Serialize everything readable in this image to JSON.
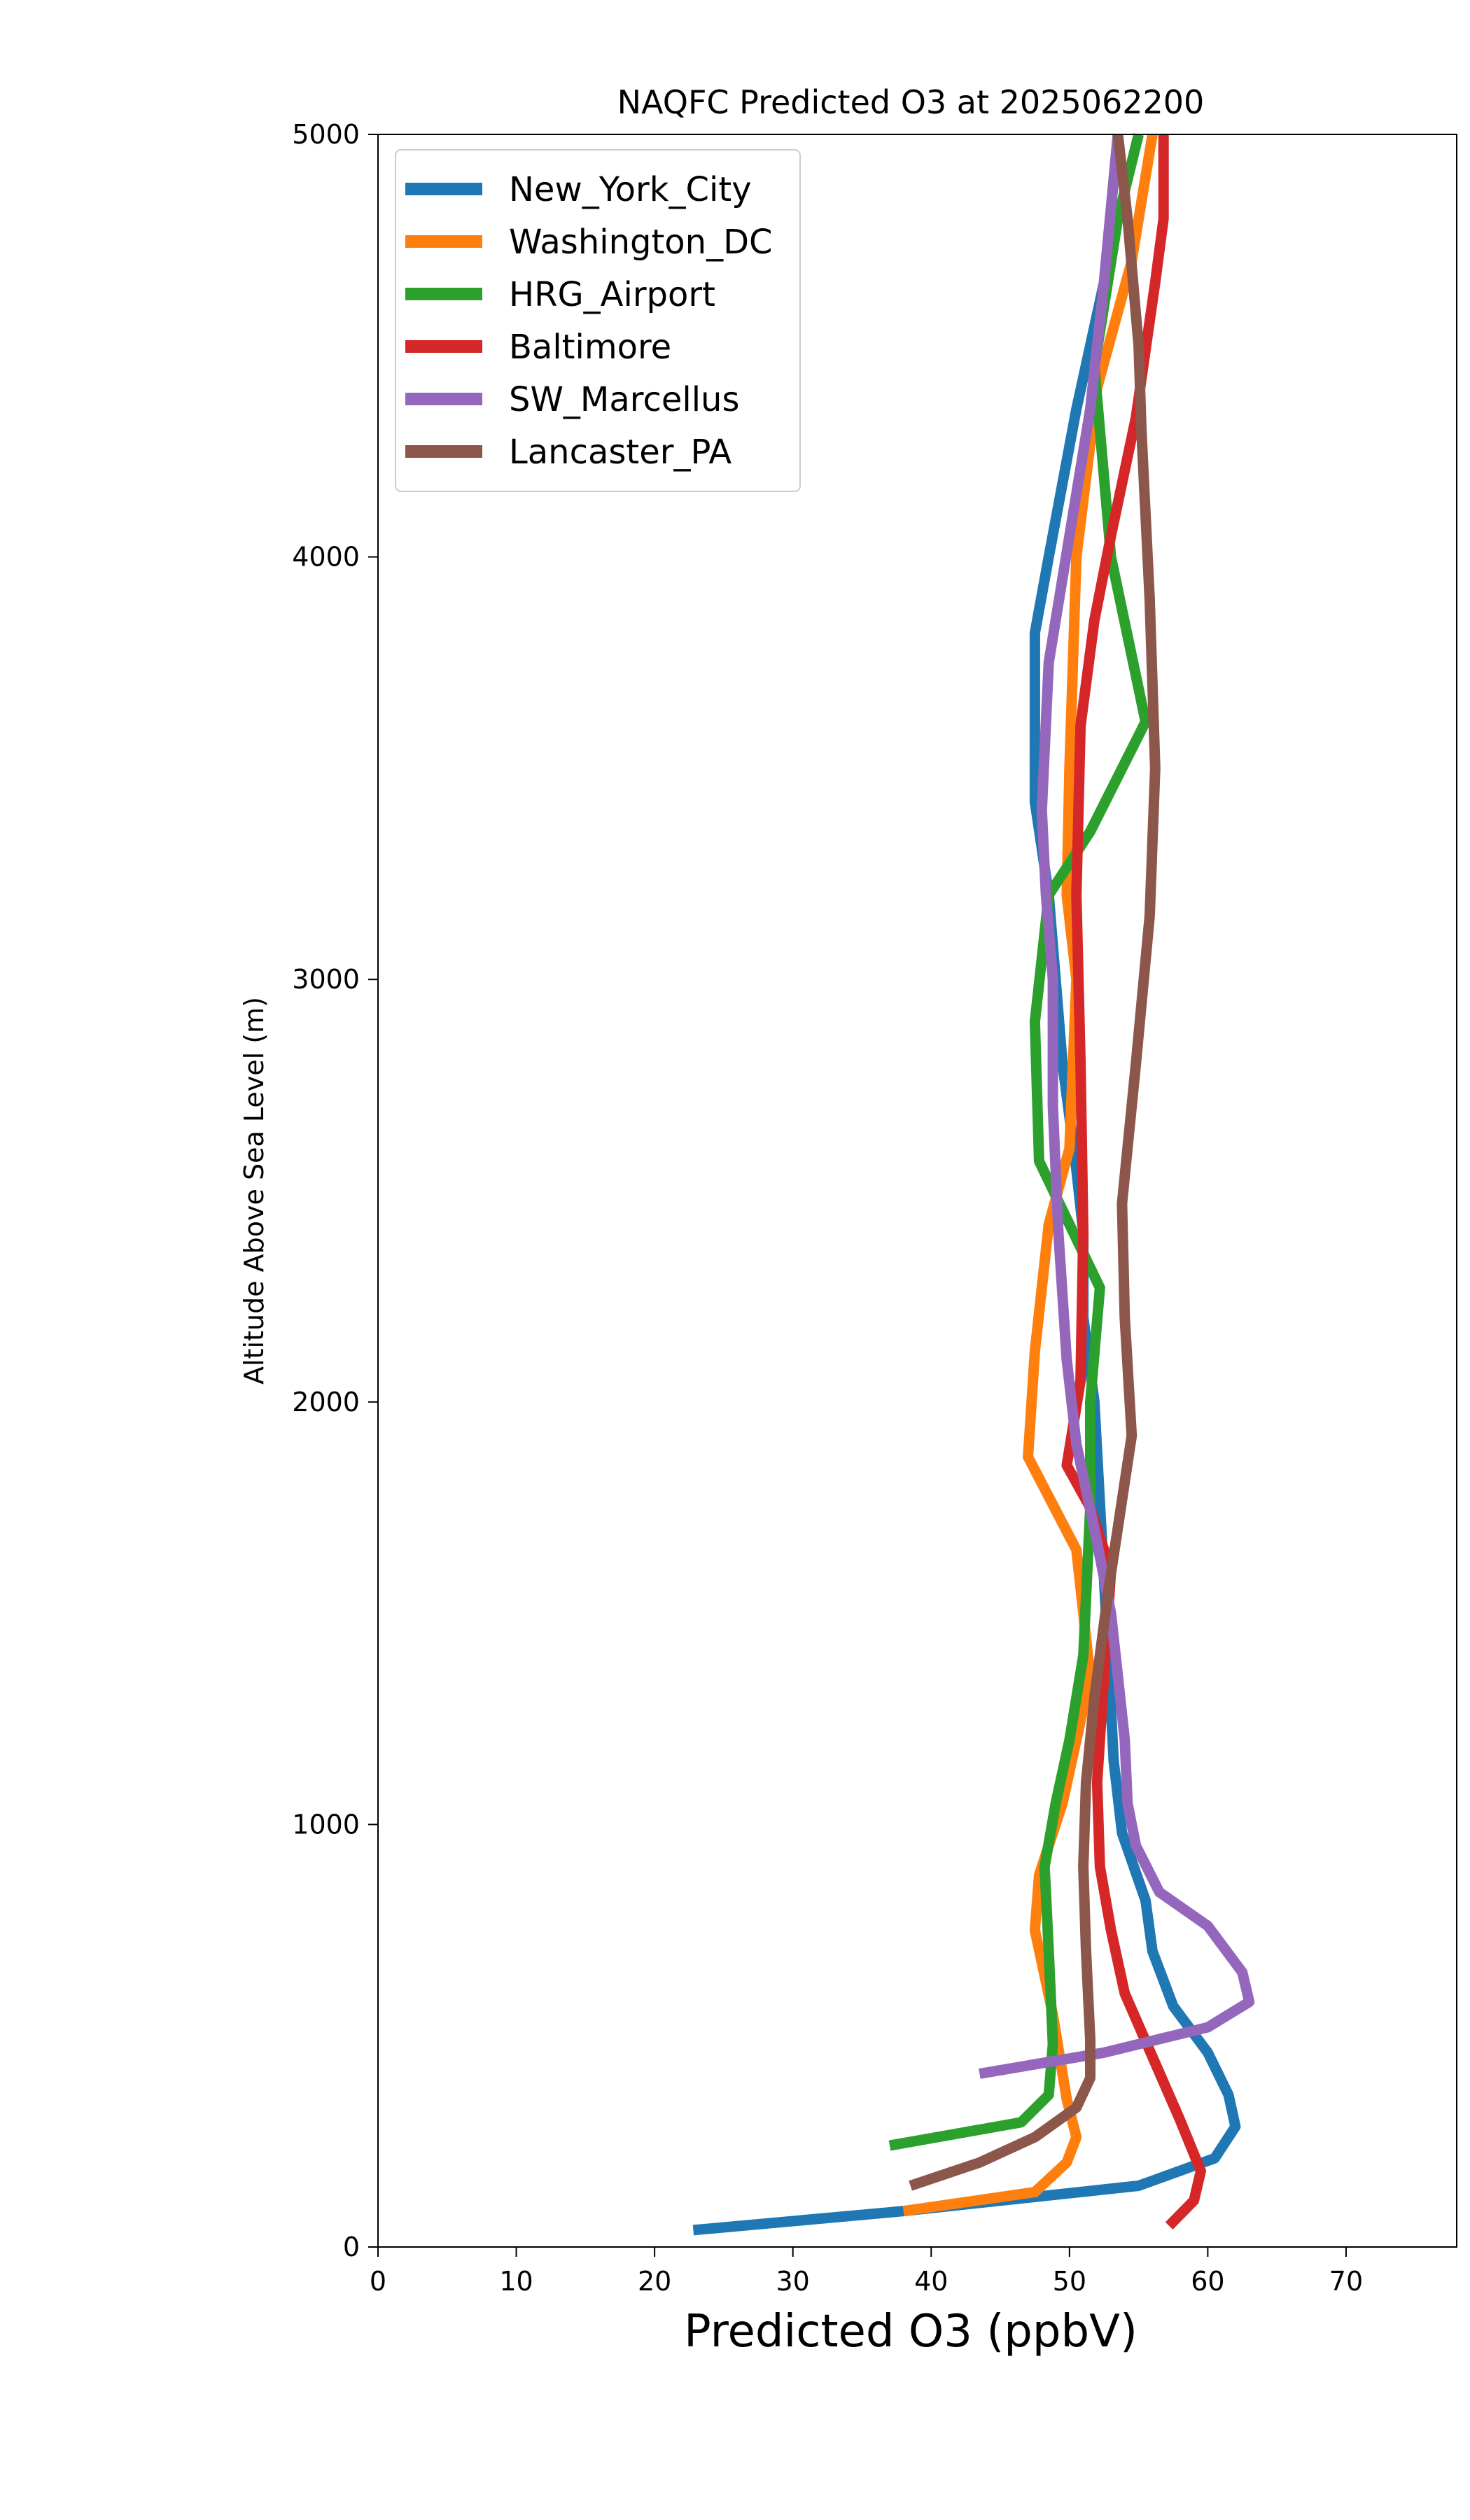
{
  "chart_data": {
    "type": "line",
    "title": "NAQFC Predicted O3 at 2025062200",
    "xlabel": "Predicted O3 (ppbV)",
    "ylabel": "Altitude Above Sea Level (m)",
    "xlim": [
      0,
      78
    ],
    "ylim": [
      0,
      5000
    ],
    "xticks": [
      "0",
      "10",
      "20",
      "30",
      "40",
      "50",
      "60",
      "70"
    ],
    "yticks": [
      "0",
      "1000",
      "2000",
      "3000",
      "4000",
      "5000"
    ],
    "grid": false,
    "legend_position": "top-left",
    "series": [
      {
        "name": "New_York_City",
        "color": "#1f77b4",
        "points": [
          [
            22.8,
            40
          ],
          [
            38,
            85
          ],
          [
            55,
            145
          ],
          [
            60.5,
            210
          ],
          [
            62,
            285
          ],
          [
            61.5,
            360
          ],
          [
            60,
            460
          ],
          [
            57.5,
            570
          ],
          [
            56,
            700
          ],
          [
            55.5,
            820
          ],
          [
            53.8,
            980
          ],
          [
            53.2,
            1150
          ],
          [
            52.8,
            1400
          ],
          [
            52.3,
            1700
          ],
          [
            51.8,
            2000
          ],
          [
            51,
            2200
          ],
          [
            51,
            2400
          ],
          [
            50.5,
            2550
          ],
          [
            49.5,
            2800
          ],
          [
            48.5,
            3200
          ],
          [
            47.5,
            3420
          ],
          [
            47.5,
            3820
          ],
          [
            48.5,
            4000
          ],
          [
            50.5,
            4350
          ],
          [
            52.5,
            4650
          ],
          [
            53.5,
            5000
          ]
        ]
      },
      {
        "name": "Washington_DC",
        "color": "#ff7f0e",
        "points": [
          [
            38,
            85
          ],
          [
            47.5,
            130
          ],
          [
            49.8,
            200
          ],
          [
            50.5,
            260
          ],
          [
            49.8,
            350
          ],
          [
            48.8,
            550
          ],
          [
            47.5,
            750
          ],
          [
            47.8,
            880
          ],
          [
            49.5,
            1050
          ],
          [
            51.5,
            1350
          ],
          [
            50.5,
            1650
          ],
          [
            47,
            1870
          ],
          [
            47.5,
            2120
          ],
          [
            48.5,
            2420
          ],
          [
            50,
            2600
          ],
          [
            50.5,
            3000
          ],
          [
            49.8,
            3200
          ],
          [
            50,
            3500
          ],
          [
            50.5,
            4000
          ],
          [
            52,
            4400
          ],
          [
            54.5,
            4700
          ],
          [
            56,
            5000
          ]
        ]
      },
      {
        "name": "HRG_Airport",
        "color": "#2ca02c",
        "points": [
          [
            37,
            240
          ],
          [
            46.5,
            295
          ],
          [
            48.5,
            360
          ],
          [
            48.8,
            480
          ],
          [
            48.5,
            700
          ],
          [
            48.2,
            900
          ],
          [
            49,
            1050
          ],
          [
            50,
            1200
          ],
          [
            51,
            1400
          ],
          [
            51.5,
            1750
          ],
          [
            51.5,
            2000
          ],
          [
            52.2,
            2270
          ],
          [
            47.8,
            2570
          ],
          [
            47.5,
            2900
          ],
          [
            48.5,
            3200
          ],
          [
            51.5,
            3350
          ],
          [
            55.5,
            3610
          ],
          [
            53,
            4000
          ],
          [
            51.8,
            4450
          ],
          [
            53.5,
            4800
          ],
          [
            55,
            5000
          ]
        ]
      },
      {
        "name": "Baltimore",
        "color": "#d62728",
        "points": [
          [
            57.2,
            50
          ],
          [
            59,
            110
          ],
          [
            59.5,
            180
          ],
          [
            58,
            300
          ],
          [
            56,
            450
          ],
          [
            54,
            600
          ],
          [
            53,
            750
          ],
          [
            52.2,
            900
          ],
          [
            52,
            1100
          ],
          [
            52.5,
            1350
          ],
          [
            53,
            1600
          ],
          [
            51.5,
            1750
          ],
          [
            49.8,
            1850
          ],
          [
            50.8,
            2050
          ],
          [
            51,
            2400
          ],
          [
            50.8,
            2800
          ],
          [
            50.5,
            3200
          ],
          [
            50.8,
            3600
          ],
          [
            51.8,
            3850
          ],
          [
            53,
            4050
          ],
          [
            54.8,
            4330
          ],
          [
            56.2,
            4650
          ],
          [
            56.8,
            4800
          ],
          [
            56.8,
            5000
          ]
        ]
      },
      {
        "name": "SW_Marcellus",
        "color": "#9467bd",
        "points": [
          [
            43.5,
            410
          ],
          [
            52.5,
            460
          ],
          [
            60,
            520
          ],
          [
            63,
            580
          ],
          [
            62.5,
            650
          ],
          [
            60,
            760
          ],
          [
            56.5,
            840
          ],
          [
            54.8,
            950
          ],
          [
            54.2,
            1050
          ],
          [
            54,
            1200
          ],
          [
            53.5,
            1350
          ],
          [
            53,
            1500
          ],
          [
            51.8,
            1700
          ],
          [
            50.5,
            1900
          ],
          [
            49.8,
            2100
          ],
          [
            49.2,
            2400
          ],
          [
            48.8,
            2700
          ],
          [
            48.8,
            3000
          ],
          [
            48.3,
            3200
          ],
          [
            48,
            3400
          ],
          [
            48.5,
            3750
          ],
          [
            50,
            4050
          ],
          [
            51.5,
            4350
          ],
          [
            52.5,
            4650
          ],
          [
            53.5,
            5000
          ]
        ]
      },
      {
        "name": "Lancaster_PA",
        "color": "#8c564b",
        "points": [
          [
            38.5,
            145
          ],
          [
            43.5,
            200
          ],
          [
            47.5,
            260
          ],
          [
            50.5,
            330
          ],
          [
            51.5,
            400
          ],
          [
            51.5,
            490
          ],
          [
            51.2,
            700
          ],
          [
            51,
            900
          ],
          [
            51.2,
            1100
          ],
          [
            51.8,
            1300
          ],
          [
            52.8,
            1550
          ],
          [
            54.5,
            1920
          ],
          [
            54,
            2200
          ],
          [
            53.8,
            2470
          ],
          [
            54.8,
            2800
          ],
          [
            55.8,
            3150
          ],
          [
            56.2,
            3500
          ],
          [
            55.8,
            3900
          ],
          [
            55.2,
            4300
          ],
          [
            55,
            4500
          ],
          [
            54.2,
            4800
          ],
          [
            53.5,
            5000
          ]
        ]
      }
    ]
  }
}
